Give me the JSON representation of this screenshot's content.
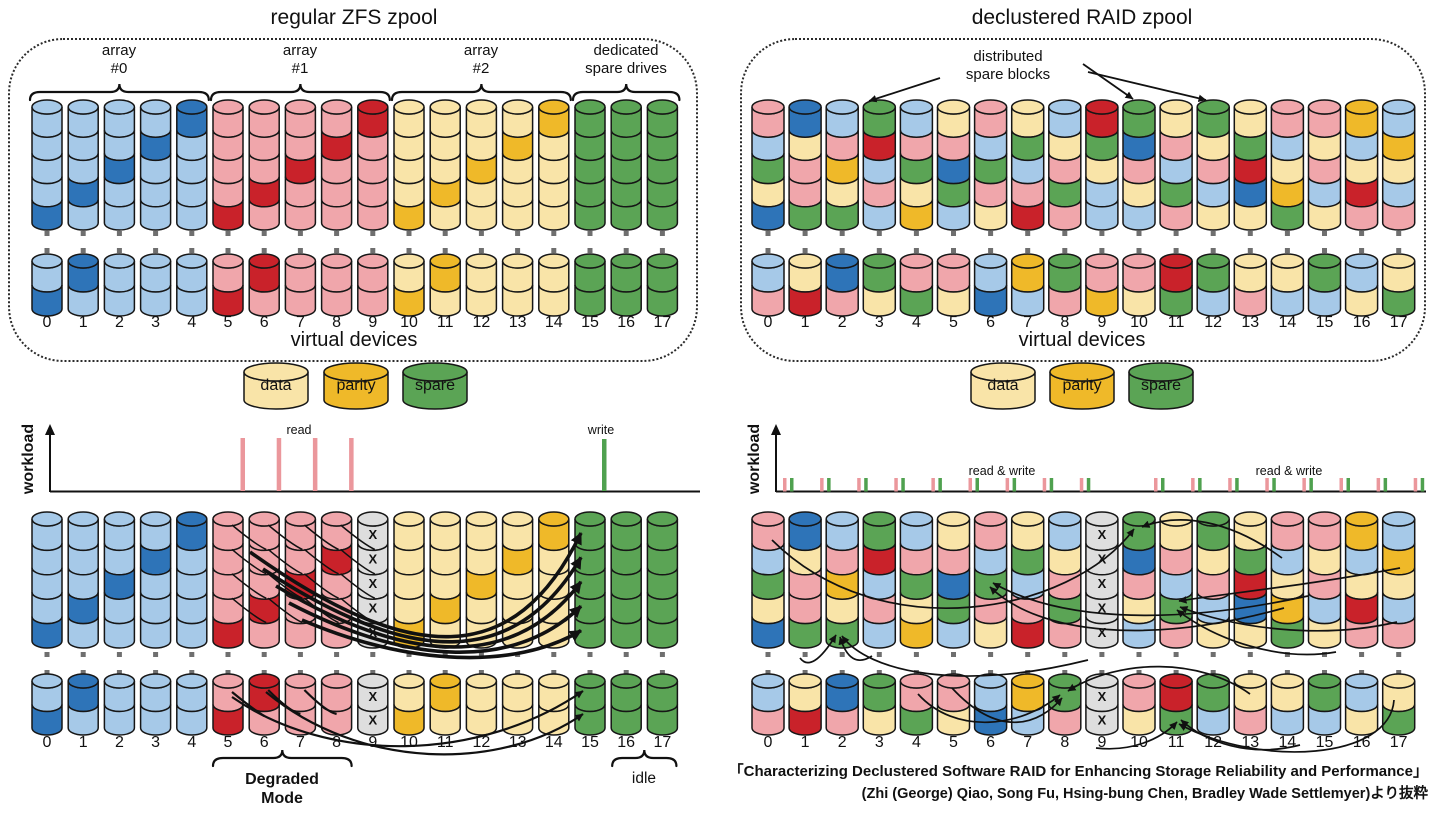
{
  "colors": {
    "lb": "#A6C9E8",
    "db": "#2E74B8",
    "pk": "#F0A6AB",
    "rd": "#C9222A",
    "ly": "#F9E4A8",
    "gd": "#EFB929",
    "gn": "#5BA455",
    "fx": "#DEDEDE",
    "stroke": "#161616",
    "dot": "#6F6F6F",
    "bar_read": "#EB979C",
    "bar_write": "#4FA14F"
  },
  "x_mark": "X",
  "left_panel": {
    "title": "regular ZFS zpool",
    "groups": [
      {
        "label": "array\n#0",
        "span": [
          0,
          4
        ]
      },
      {
        "label": "array\n#1",
        "span": [
          5,
          9
        ]
      },
      {
        "label": "array\n#2",
        "span": [
          10,
          14
        ]
      },
      {
        "label": "dedicated\nspare drives",
        "span": [
          15,
          17
        ]
      }
    ],
    "top_drives": [
      [
        "lb",
        "lb",
        "lb",
        "lb",
        "db"
      ],
      [
        "lb",
        "lb",
        "lb",
        "db",
        "lb"
      ],
      [
        "lb",
        "lb",
        "db",
        "lb",
        "lb"
      ],
      [
        "lb",
        "db",
        "lb",
        "lb",
        "lb"
      ],
      [
        "db",
        "lb",
        "lb",
        "lb",
        "lb"
      ],
      [
        "pk",
        "pk",
        "pk",
        "pk",
        "rd"
      ],
      [
        "pk",
        "pk",
        "pk",
        "rd",
        "pk"
      ],
      [
        "pk",
        "pk",
        "rd",
        "pk",
        "pk"
      ],
      [
        "pk",
        "rd",
        "pk",
        "pk",
        "pk"
      ],
      [
        "rd",
        "pk",
        "pk",
        "pk",
        "pk"
      ],
      [
        "ly",
        "ly",
        "ly",
        "ly",
        "gd"
      ],
      [
        "ly",
        "ly",
        "ly",
        "gd",
        "ly"
      ],
      [
        "ly",
        "ly",
        "gd",
        "ly",
        "ly"
      ],
      [
        "ly",
        "gd",
        "ly",
        "ly",
        "ly"
      ],
      [
        "gd",
        "ly",
        "ly",
        "ly",
        "ly"
      ],
      [
        "gn",
        "gn",
        "gn",
        "gn",
        "gn"
      ],
      [
        "gn",
        "gn",
        "gn",
        "gn",
        "gn"
      ],
      [
        "gn",
        "gn",
        "gn",
        "gn",
        "gn"
      ]
    ],
    "bottom_drives": [
      [
        "lb",
        "db"
      ],
      [
        "db",
        "lb"
      ],
      [
        "lb",
        "lb"
      ],
      [
        "lb",
        "lb"
      ],
      [
        "lb",
        "lb"
      ],
      [
        "pk",
        "rd"
      ],
      [
        "rd",
        "pk"
      ],
      [
        "pk",
        "pk"
      ],
      [
        "pk",
        "pk"
      ],
      [
        "pk",
        "pk"
      ],
      [
        "ly",
        "gd"
      ],
      [
        "gd",
        "ly"
      ],
      [
        "ly",
        "ly"
      ],
      [
        "ly",
        "ly"
      ],
      [
        "ly",
        "ly"
      ],
      [
        "gn",
        "gn"
      ],
      [
        "gn",
        "gn"
      ],
      [
        "gn",
        "gn"
      ]
    ],
    "device_numbers": [
      "0",
      "1",
      "2",
      "3",
      "4",
      "5",
      "6",
      "7",
      "8",
      "9",
      "10",
      "11",
      "12",
      "13",
      "14",
      "15",
      "16",
      "17"
    ],
    "virtual_devices_label": "virtual devices",
    "legend": [
      {
        "label": "data",
        "color": "ly"
      },
      {
        "label": "parity",
        "color": "gd"
      },
      {
        "label": "spare",
        "color": "gn"
      }
    ],
    "workload": {
      "ylabel": "workload",
      "read_label": "read",
      "write_label": "write",
      "read_devices": [
        5,
        6,
        7,
        8
      ],
      "write_devices": [
        15
      ]
    },
    "degraded": {
      "failed_device": 9,
      "spare_device": 15,
      "mode_label": "Degraded\nMode",
      "mode_span": [
        5,
        8
      ],
      "idle_label": "idle",
      "idle_span": [
        16,
        17
      ]
    }
  },
  "right_panel": {
    "title": "declustered RAID zpool",
    "spare_blocks_label": "distributed\nspare blocks",
    "top_drives": [
      [
        "pk",
        "lb",
        "gn",
        "ly",
        "db"
      ],
      [
        "db",
        "ly",
        "pk",
        "pk",
        "gn"
      ],
      [
        "lb",
        "pk",
        "gd",
        "ly",
        "gn"
      ],
      [
        "gn",
        "rd",
        "lb",
        "pk",
        "lb"
      ],
      [
        "lb",
        "pk",
        "gn",
        "ly",
        "gd"
      ],
      [
        "ly",
        "pk",
        "db",
        "gn",
        "lb"
      ],
      [
        "pk",
        "lb",
        "gn",
        "pk",
        "ly"
      ],
      [
        "ly",
        "gn",
        "lb",
        "pk",
        "rd"
      ],
      [
        "lb",
        "ly",
        "pk",
        "gn",
        "pk"
      ],
      [
        "rd",
        "gn",
        "ly",
        "lb",
        "lb"
      ],
      [
        "gn",
        "db",
        "pk",
        "ly",
        "lb"
      ],
      [
        "ly",
        "pk",
        "lb",
        "gn",
        "pk"
      ],
      [
        "gn",
        "ly",
        "pk",
        "lb",
        "ly"
      ],
      [
        "ly",
        "gn",
        "rd",
        "db",
        "ly"
      ],
      [
        "pk",
        "lb",
        "ly",
        "gd",
        "gn"
      ],
      [
        "pk",
        "ly",
        "pk",
        "lb",
        "ly"
      ],
      [
        "gd",
        "lb",
        "ly",
        "rd",
        "pk"
      ],
      [
        "lb",
        "gd",
        "ly",
        "lb",
        "pk"
      ]
    ],
    "bottom_drives": [
      [
        "lb",
        "pk"
      ],
      [
        "ly",
        "rd"
      ],
      [
        "db",
        "pk"
      ],
      [
        "gn",
        "ly"
      ],
      [
        "pk",
        "gn"
      ],
      [
        "pk",
        "ly"
      ],
      [
        "lb",
        "db"
      ],
      [
        "gd",
        "lb"
      ],
      [
        "gn",
        "pk"
      ],
      [
        "pk",
        "gd"
      ],
      [
        "pk",
        "ly"
      ],
      [
        "rd",
        "gn"
      ],
      [
        "gn",
        "lb"
      ],
      [
        "ly",
        "pk"
      ],
      [
        "ly",
        "lb"
      ],
      [
        "gn",
        "lb"
      ],
      [
        "lb",
        "ly"
      ],
      [
        "ly",
        "gn"
      ]
    ],
    "device_numbers": [
      "0",
      "1",
      "2",
      "3",
      "4",
      "5",
      "6",
      "7",
      "8",
      "9",
      "10",
      "11",
      "12",
      "13",
      "14",
      "15",
      "16",
      "17"
    ],
    "virtual_devices_label": "virtual devices",
    "legend": [
      {
        "label": "data",
        "color": "ly"
      },
      {
        "label": "parity",
        "color": "gd"
      },
      {
        "label": "spare",
        "color": "gn"
      }
    ],
    "workload": {
      "ylabel": "workload",
      "labels": [
        "read & write",
        "read & write"
      ],
      "active_devices": [
        0,
        1,
        2,
        3,
        4,
        5,
        6,
        7,
        8,
        10,
        11,
        12,
        13,
        14,
        15,
        16,
        17
      ]
    },
    "degraded": {
      "failed_device": 9
    }
  },
  "citation": {
    "line1": "「Characterizing Declustered Software RAID for Enhancing Storage Reliability and Performance」",
    "line2": "(Zhi (George) Qiao, Song Fu, Hsing-bung Chen, Bradley Wade Settlemyer)より抜粋"
  }
}
